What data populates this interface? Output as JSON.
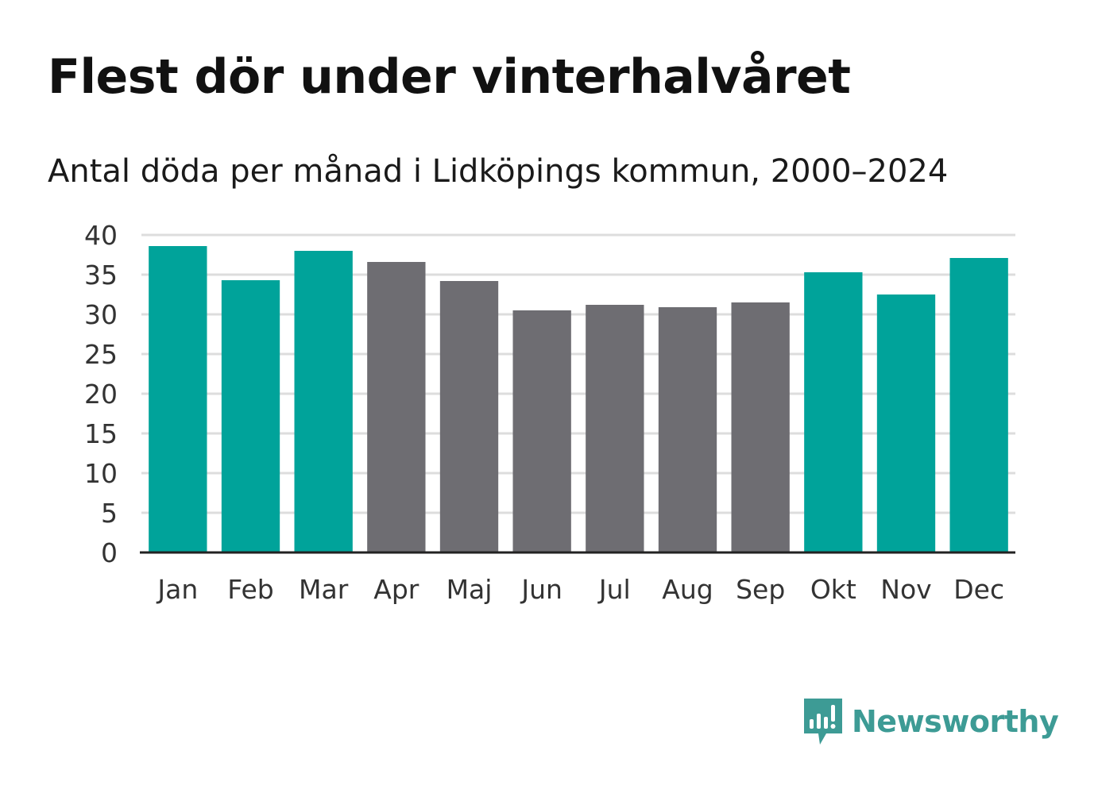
{
  "chart_data": {
    "type": "bar",
    "title": "Flest dör under vinterhalvåret",
    "subtitle": "Antal döda per månad i Lidköpings kommun, 2000–2024",
    "xlabel": "",
    "ylabel": "",
    "categories": [
      "Jan",
      "Feb",
      "Mar",
      "Apr",
      "Maj",
      "Jun",
      "Jul",
      "Aug",
      "Sep",
      "Okt",
      "Nov",
      "Dec"
    ],
    "values": [
      38.6,
      34.3,
      38.0,
      36.6,
      34.2,
      30.5,
      31.2,
      30.9,
      31.5,
      35.3,
      32.5,
      37.1
    ],
    "highlight": [
      true,
      true,
      true,
      false,
      false,
      false,
      false,
      false,
      false,
      true,
      true,
      true
    ],
    "ylim": [
      0,
      40
    ],
    "yticks": [
      0,
      5,
      10,
      15,
      20,
      25,
      30,
      35,
      40
    ],
    "grid": true,
    "colors": {
      "highlight": "#00a39a",
      "default": "#6e6d72",
      "grid": "#dddddd",
      "axis": "#222222"
    }
  },
  "brand": {
    "name": "Newsworthy",
    "color": "#3d9b95",
    "icon": "newsworthy-logo-icon"
  }
}
